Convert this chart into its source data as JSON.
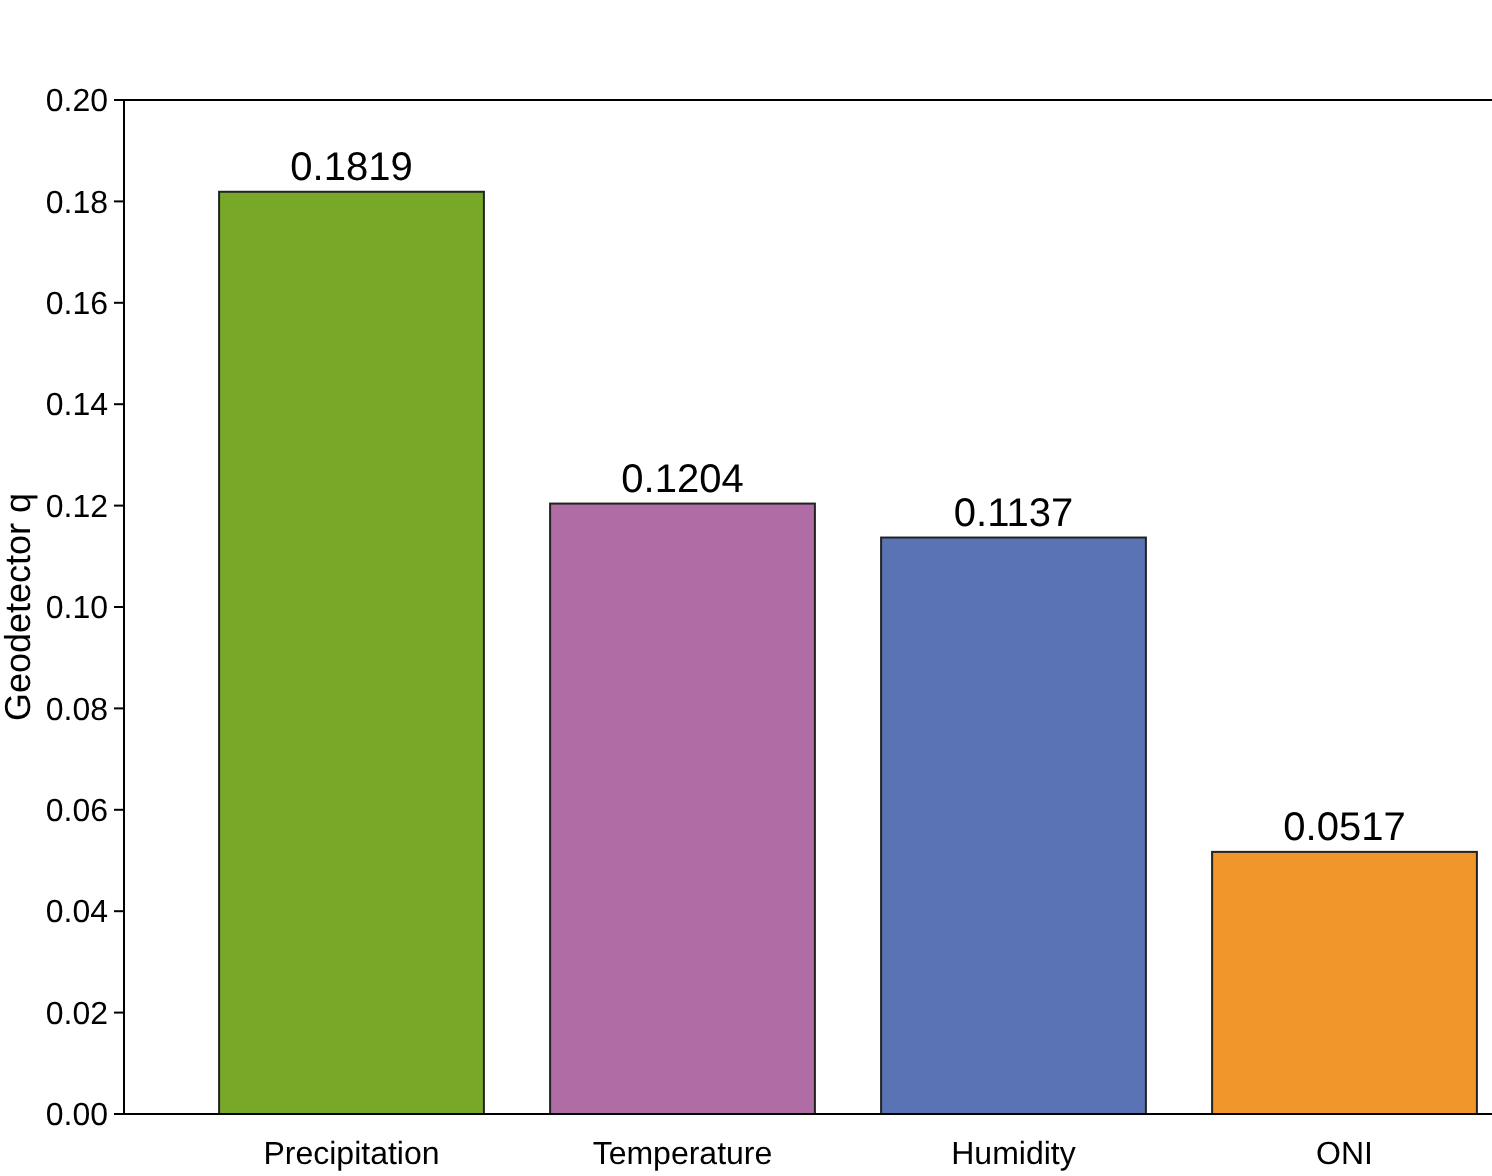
{
  "chart_data": {
    "type": "bar",
    "ylabel": "Geodetector q",
    "categories": [
      "Precipitation",
      "Temperature",
      "Humidity",
      "ONI"
    ],
    "values": [
      0.1819,
      0.1204,
      0.1137,
      0.0517
    ],
    "colors": [
      "#77a828",
      "#b06ca4",
      "#5a73b5",
      "#f0962a"
    ],
    "ylim": [
      0,
      0.2
    ],
    "yticks": [
      "0.00",
      "0.02",
      "0.04",
      "0.06",
      "0.08",
      "0.10",
      "0.12",
      "0.14",
      "0.16",
      "0.18",
      "0.20"
    ],
    "data_labels": true,
    "grid": false
  }
}
